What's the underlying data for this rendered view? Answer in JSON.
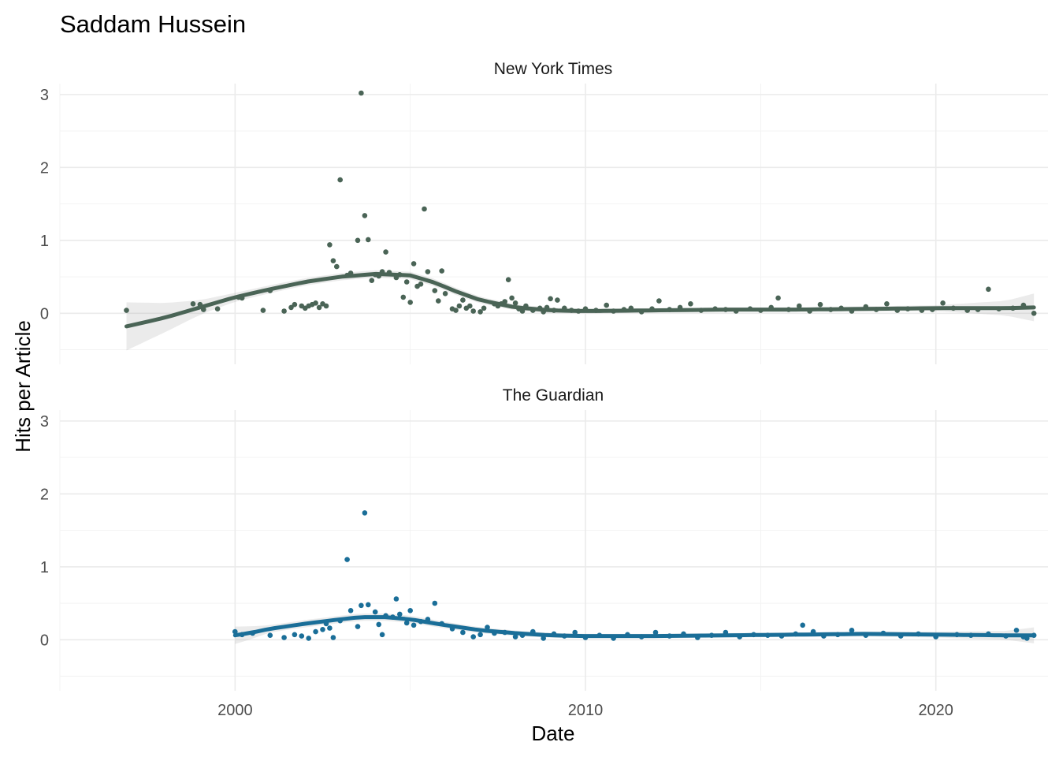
{
  "chart_data": {
    "type": "scatter",
    "title": "Saddam Hussein",
    "xlabel": "Date",
    "ylabel": "Hits per Article",
    "x_ticks": [
      "2000",
      "2010",
      "2020"
    ],
    "y_ticks": [
      "0",
      "1",
      "2",
      "3"
    ],
    "xlim": [
      1995,
      2023.2
    ],
    "ylim": [
      -0.7,
      3.15
    ],
    "grid": true,
    "legend": "none",
    "panels": [
      {
        "name": "New York Times",
        "color": "#4a6456",
        "points": [
          [
            1996.9,
            0.04
          ],
          [
            1998.8,
            0.13
          ],
          [
            1999.0,
            0.12
          ],
          [
            1999.1,
            0.05
          ],
          [
            1999.5,
            0.06
          ],
          [
            2000.1,
            0.22
          ],
          [
            2000.2,
            0.21
          ],
          [
            2000.8,
            0.04
          ],
          [
            2001.0,
            0.31
          ],
          [
            2001.4,
            0.03
          ],
          [
            2001.6,
            0.08
          ],
          [
            2001.7,
            0.12
          ],
          [
            2001.9,
            0.1
          ],
          [
            2002.0,
            0.07
          ],
          [
            2002.1,
            0.1
          ],
          [
            2002.2,
            0.12
          ],
          [
            2002.3,
            0.14
          ],
          [
            2002.4,
            0.08
          ],
          [
            2002.5,
            0.13
          ],
          [
            2002.6,
            0.1
          ],
          [
            2002.7,
            0.94
          ],
          [
            2002.8,
            0.72
          ],
          [
            2002.9,
            0.64
          ],
          [
            2003.0,
            1.83
          ],
          [
            2003.2,
            0.52
          ],
          [
            2003.3,
            0.55
          ],
          [
            2003.5,
            1.0
          ],
          [
            2003.6,
            3.02
          ],
          [
            2003.7,
            1.34
          ],
          [
            2003.8,
            1.01
          ],
          [
            2003.9,
            0.45
          ],
          [
            2004.0,
            0.53
          ],
          [
            2004.1,
            0.51
          ],
          [
            2004.2,
            0.57
          ],
          [
            2004.3,
            0.84
          ],
          [
            2004.4,
            0.56
          ],
          [
            2004.6,
            0.49
          ],
          [
            2004.7,
            0.53
          ],
          [
            2004.8,
            0.22
          ],
          [
            2004.9,
            0.43
          ],
          [
            2005.0,
            0.15
          ],
          [
            2005.1,
            0.68
          ],
          [
            2005.2,
            0.37
          ],
          [
            2005.3,
            0.4
          ],
          [
            2005.4,
            1.43
          ],
          [
            2005.5,
            0.57
          ],
          [
            2005.7,
            0.31
          ],
          [
            2005.8,
            0.17
          ],
          [
            2005.9,
            0.58
          ],
          [
            2006.0,
            0.27
          ],
          [
            2006.2,
            0.06
          ],
          [
            2006.3,
            0.04
          ],
          [
            2006.4,
            0.1
          ],
          [
            2006.5,
            0.18
          ],
          [
            2006.6,
            0.07
          ],
          [
            2006.7,
            0.1
          ],
          [
            2006.8,
            0.03
          ],
          [
            2007.0,
            0.02
          ],
          [
            2007.1,
            0.07
          ],
          [
            2007.4,
            0.13
          ],
          [
            2007.5,
            0.1
          ],
          [
            2007.6,
            0.13
          ],
          [
            2007.7,
            0.16
          ],
          [
            2007.8,
            0.46
          ],
          [
            2007.9,
            0.21
          ],
          [
            2008.0,
            0.14
          ],
          [
            2008.1,
            0.06
          ],
          [
            2008.2,
            0.03
          ],
          [
            2008.3,
            0.1
          ],
          [
            2008.5,
            0.04
          ],
          [
            2008.7,
            0.07
          ],
          [
            2008.8,
            0.02
          ],
          [
            2008.9,
            0.08
          ],
          [
            2009.0,
            0.2
          ],
          [
            2009.1,
            0.04
          ],
          [
            2009.2,
            0.18
          ],
          [
            2009.4,
            0.07
          ],
          [
            2009.6,
            0.04
          ],
          [
            2009.8,
            0.03
          ],
          [
            2010.0,
            0.06
          ],
          [
            2010.3,
            0.04
          ],
          [
            2010.6,
            0.11
          ],
          [
            2010.8,
            0.03
          ],
          [
            2011.1,
            0.05
          ],
          [
            2011.3,
            0.07
          ],
          [
            2011.6,
            0.02
          ],
          [
            2011.9,
            0.06
          ],
          [
            2012.1,
            0.17
          ],
          [
            2012.4,
            0.05
          ],
          [
            2012.7,
            0.08
          ],
          [
            2013.0,
            0.13
          ],
          [
            2013.3,
            0.04
          ],
          [
            2013.7,
            0.06
          ],
          [
            2014.0,
            0.05
          ],
          [
            2014.3,
            0.03
          ],
          [
            2014.7,
            0.06
          ],
          [
            2015.0,
            0.04
          ],
          [
            2015.3,
            0.08
          ],
          [
            2015.5,
            0.21
          ],
          [
            2015.8,
            0.05
          ],
          [
            2016.1,
            0.1
          ],
          [
            2016.4,
            0.03
          ],
          [
            2016.7,
            0.12
          ],
          [
            2017.0,
            0.05
          ],
          [
            2017.3,
            0.07
          ],
          [
            2017.6,
            0.03
          ],
          [
            2018.0,
            0.09
          ],
          [
            2018.3,
            0.05
          ],
          [
            2018.6,
            0.13
          ],
          [
            2018.9,
            0.04
          ],
          [
            2019.2,
            0.06
          ],
          [
            2019.6,
            0.04
          ],
          [
            2019.9,
            0.05
          ],
          [
            2020.2,
            0.14
          ],
          [
            2020.5,
            0.07
          ],
          [
            2020.9,
            0.04
          ],
          [
            2021.2,
            0.05
          ],
          [
            2021.5,
            0.33
          ],
          [
            2021.8,
            0.06
          ],
          [
            2022.2,
            0.07
          ],
          [
            2022.5,
            0.11
          ],
          [
            2022.8,
            0.0
          ]
        ],
        "smooth": [
          [
            1996.9,
            -0.18
          ],
          [
            1998.0,
            -0.06
          ],
          [
            1999.0,
            0.08
          ],
          [
            2000.0,
            0.22
          ],
          [
            2001.0,
            0.33
          ],
          [
            2002.0,
            0.43
          ],
          [
            2003.0,
            0.5
          ],
          [
            2004.0,
            0.54
          ],
          [
            2005.0,
            0.52
          ],
          [
            2005.7,
            0.42
          ],
          [
            2006.3,
            0.3
          ],
          [
            2007.0,
            0.18
          ],
          [
            2008.0,
            0.08
          ],
          [
            2009.0,
            0.04
          ],
          [
            2010.0,
            0.03
          ],
          [
            2012.0,
            0.04
          ],
          [
            2014.0,
            0.05
          ],
          [
            2016.0,
            0.05
          ],
          [
            2018.0,
            0.06
          ],
          [
            2020.0,
            0.07
          ],
          [
            2022.0,
            0.07
          ],
          [
            2022.8,
            0.08
          ]
        ],
        "band_half_width": [
          [
            1996.9,
            0.33
          ],
          [
            1998.0,
            0.2
          ],
          [
            1999.0,
            0.1
          ],
          [
            2000.0,
            0.06
          ],
          [
            2002.0,
            0.05
          ],
          [
            2004.0,
            0.05
          ],
          [
            2006.0,
            0.05
          ],
          [
            2008.0,
            0.04
          ],
          [
            2012.0,
            0.03
          ],
          [
            2016.0,
            0.03
          ],
          [
            2020.0,
            0.04
          ],
          [
            2022.0,
            0.1
          ],
          [
            2022.8,
            0.19
          ]
        ]
      },
      {
        "name": "The Guardian",
        "color": "#1a6e98",
        "points": [
          [
            2000.0,
            0.11
          ],
          [
            2000.2,
            0.07
          ],
          [
            2000.5,
            0.09
          ],
          [
            2001.0,
            0.06
          ],
          [
            2001.4,
            0.03
          ],
          [
            2001.7,
            0.07
          ],
          [
            2001.9,
            0.05
          ],
          [
            2002.1,
            0.02
          ],
          [
            2002.3,
            0.11
          ],
          [
            2002.5,
            0.14
          ],
          [
            2002.6,
            0.22
          ],
          [
            2002.7,
            0.16
          ],
          [
            2002.8,
            0.03
          ],
          [
            2003.0,
            0.26
          ],
          [
            2003.2,
            1.1
          ],
          [
            2003.3,
            0.4
          ],
          [
            2003.5,
            0.18
          ],
          [
            2003.6,
            0.47
          ],
          [
            2003.7,
            1.74
          ],
          [
            2003.8,
            0.48
          ],
          [
            2004.0,
            0.38
          ],
          [
            2004.1,
            0.21
          ],
          [
            2004.2,
            0.07
          ],
          [
            2004.3,
            0.33
          ],
          [
            2004.5,
            0.31
          ],
          [
            2004.6,
            0.56
          ],
          [
            2004.7,
            0.35
          ],
          [
            2004.9,
            0.23
          ],
          [
            2005.0,
            0.4
          ],
          [
            2005.1,
            0.2
          ],
          [
            2005.3,
            0.25
          ],
          [
            2005.5,
            0.28
          ],
          [
            2005.7,
            0.5
          ],
          [
            2005.9,
            0.22
          ],
          [
            2006.2,
            0.15
          ],
          [
            2006.5,
            0.1
          ],
          [
            2006.8,
            0.04
          ],
          [
            2007.0,
            0.07
          ],
          [
            2007.2,
            0.17
          ],
          [
            2007.4,
            0.09
          ],
          [
            2007.7,
            0.1
          ],
          [
            2008.0,
            0.04
          ],
          [
            2008.2,
            0.06
          ],
          [
            2008.5,
            0.11
          ],
          [
            2008.8,
            0.02
          ],
          [
            2009.1,
            0.08
          ],
          [
            2009.4,
            0.05
          ],
          [
            2009.7,
            0.1
          ],
          [
            2010.0,
            0.03
          ],
          [
            2010.4,
            0.06
          ],
          [
            2010.8,
            0.02
          ],
          [
            2011.2,
            0.07
          ],
          [
            2011.6,
            0.04
          ],
          [
            2012.0,
            0.1
          ],
          [
            2012.4,
            0.05
          ],
          [
            2012.8,
            0.08
          ],
          [
            2013.2,
            0.03
          ],
          [
            2013.6,
            0.06
          ],
          [
            2014.0,
            0.1
          ],
          [
            2014.4,
            0.04
          ],
          [
            2014.8,
            0.07
          ],
          [
            2015.2,
            0.06
          ],
          [
            2015.6,
            0.05
          ],
          [
            2016.0,
            0.08
          ],
          [
            2016.2,
            0.2
          ],
          [
            2016.5,
            0.11
          ],
          [
            2016.8,
            0.05
          ],
          [
            2017.2,
            0.07
          ],
          [
            2017.6,
            0.13
          ],
          [
            2018.0,
            0.06
          ],
          [
            2018.5,
            0.09
          ],
          [
            2019.0,
            0.05
          ],
          [
            2019.5,
            0.08
          ],
          [
            2020.0,
            0.04
          ],
          [
            2020.6,
            0.07
          ],
          [
            2021.0,
            0.06
          ],
          [
            2021.5,
            0.08
          ],
          [
            2022.0,
            0.05
          ],
          [
            2022.3,
            0.13
          ],
          [
            2022.5,
            0.04
          ],
          [
            2022.6,
            0.02
          ],
          [
            2022.8,
            0.06
          ]
        ],
        "smooth": [
          [
            2000.0,
            0.06
          ],
          [
            2000.5,
            0.1
          ],
          [
            2001.0,
            0.15
          ],
          [
            2002.0,
            0.22
          ],
          [
            2003.0,
            0.28
          ],
          [
            2003.6,
            0.31
          ],
          [
            2004.3,
            0.31
          ],
          [
            2005.0,
            0.28
          ],
          [
            2006.0,
            0.2
          ],
          [
            2007.0,
            0.13
          ],
          [
            2008.0,
            0.09
          ],
          [
            2009.0,
            0.06
          ],
          [
            2010.0,
            0.05
          ],
          [
            2012.0,
            0.05
          ],
          [
            2014.0,
            0.06
          ],
          [
            2016.0,
            0.07
          ],
          [
            2018.0,
            0.08
          ],
          [
            2020.0,
            0.07
          ],
          [
            2022.0,
            0.06
          ],
          [
            2022.8,
            0.06
          ]
        ],
        "band_half_width": [
          [
            2000.0,
            0.12
          ],
          [
            2001.0,
            0.05
          ],
          [
            2003.0,
            0.05
          ],
          [
            2005.0,
            0.05
          ],
          [
            2007.0,
            0.04
          ],
          [
            2010.0,
            0.03
          ],
          [
            2016.0,
            0.03
          ],
          [
            2020.0,
            0.04
          ],
          [
            2022.0,
            0.06
          ],
          [
            2022.8,
            0.11
          ]
        ]
      }
    ]
  }
}
